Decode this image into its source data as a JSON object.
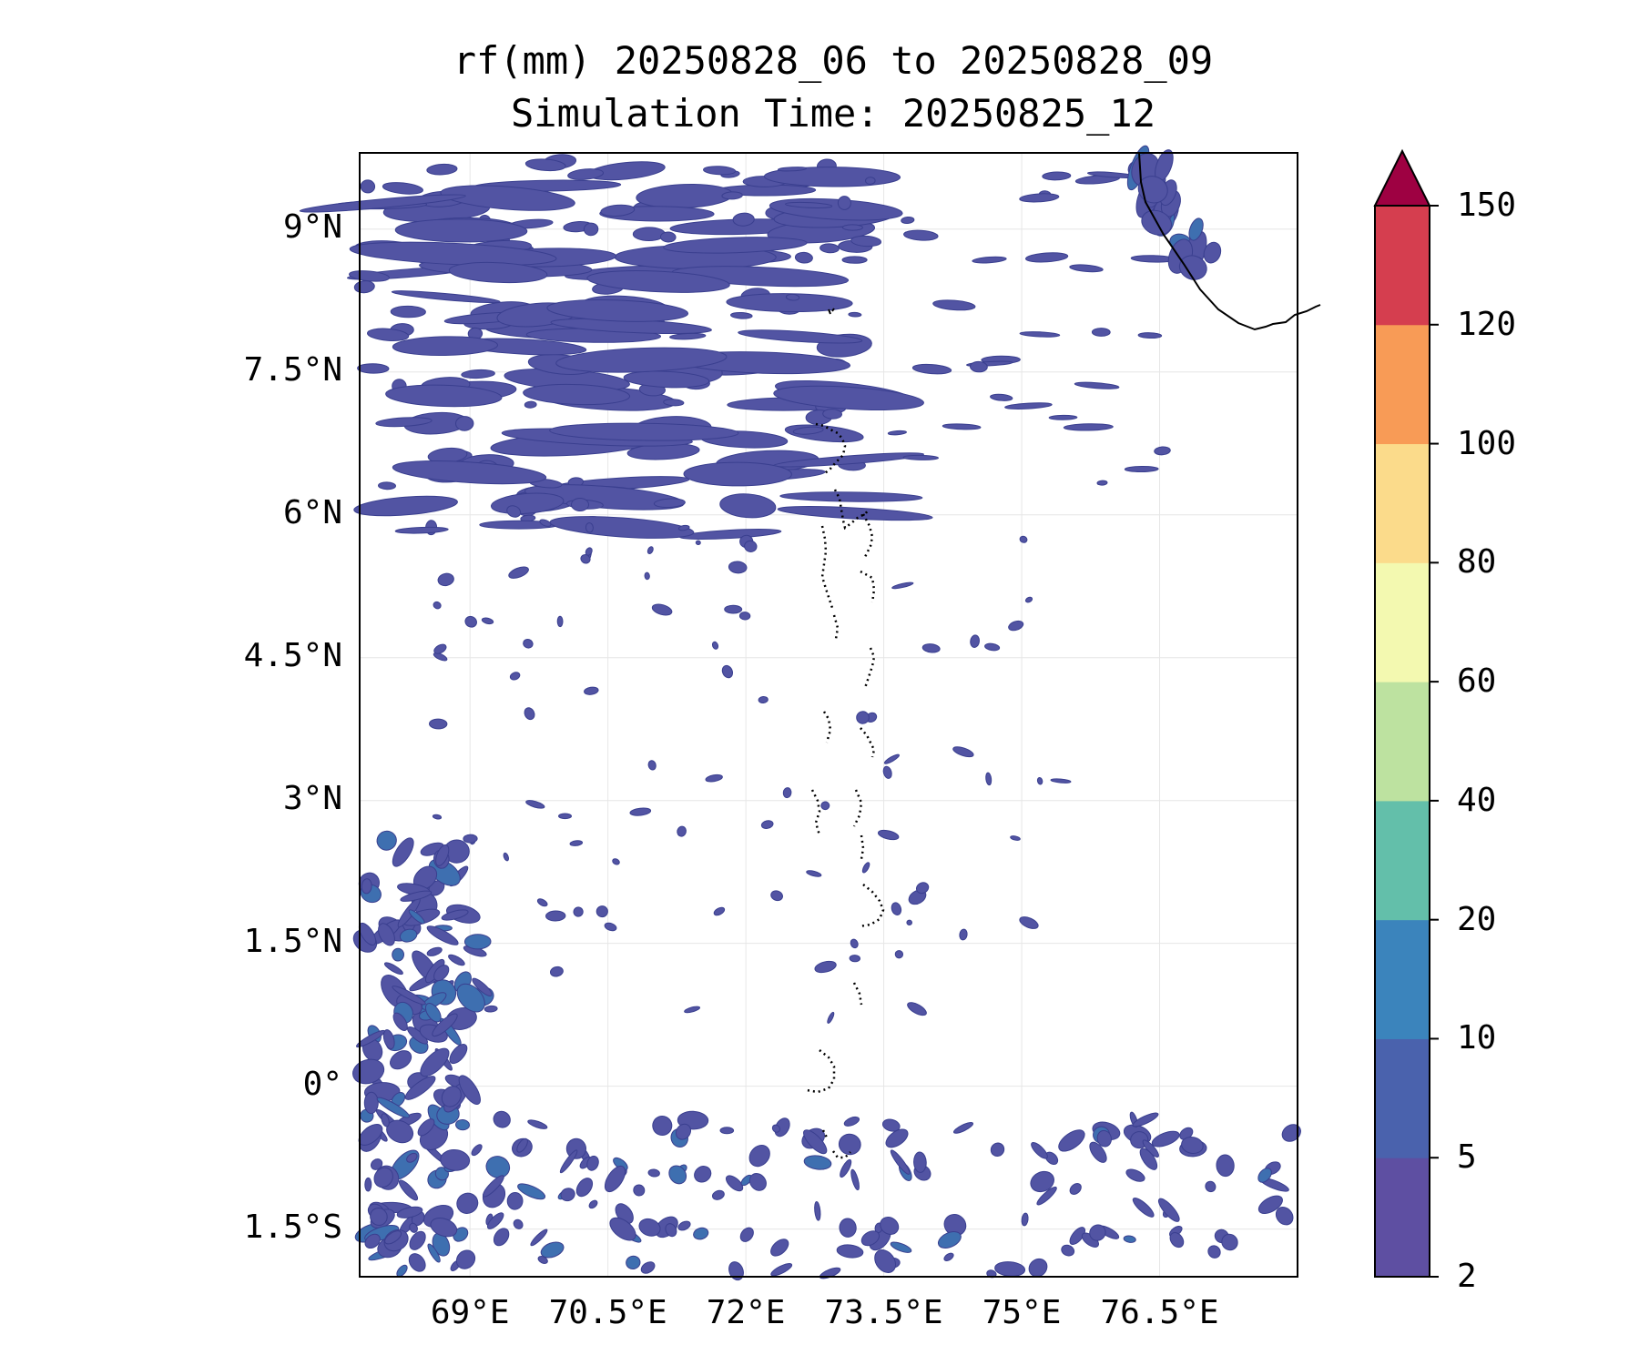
{
  "title_line1": "rf(mm) 20250828_06 to 20250828_09",
  "title_line2": "Simulation Time: 20250825_12",
  "map": {
    "variable": "rf(mm)",
    "lon_range": [
      67.8,
      78.0
    ],
    "lat_range": [
      -2.0,
      9.8
    ],
    "lat_ticks": [
      {
        "value": 9,
        "label": "9°N"
      },
      {
        "value": 7.5,
        "label": "7.5°N"
      },
      {
        "value": 6,
        "label": "6°N"
      },
      {
        "value": 4.5,
        "label": "4.5°N"
      },
      {
        "value": 3,
        "label": "3°N"
      },
      {
        "value": 1.5,
        "label": "1.5°N"
      },
      {
        "value": 0,
        "label": "0°"
      },
      {
        "value": -1.5,
        "label": "1.5°S"
      }
    ],
    "lon_ticks": [
      {
        "value": 69,
        "label": "69°E"
      },
      {
        "value": 70.5,
        "label": "70.5°E"
      },
      {
        "value": 72,
        "label": "72°E"
      },
      {
        "value": 73.5,
        "label": "73.5°E"
      },
      {
        "value": 75,
        "label": "75°E"
      },
      {
        "value": 76.5,
        "label": "76.5°E"
      }
    ],
    "gridlines": true,
    "rain_color": "#5254a3",
    "rain_color_heavy": "#3e6fb0",
    "coastline_color": "#000000"
  },
  "colorbar": {
    "levels": [
      "2",
      "5",
      "10",
      "20",
      "40",
      "60",
      "80",
      "100",
      "120",
      "150"
    ],
    "colors": [
      "#5e4fa2",
      "#4a62ad",
      "#3b84bc",
      "#63bfaa",
      "#bde2a0",
      "#f3f9b0",
      "#fbdb8b",
      "#f89b56",
      "#d53e4f"
    ],
    "extend_color": "#9e0142",
    "extend": "max"
  }
}
